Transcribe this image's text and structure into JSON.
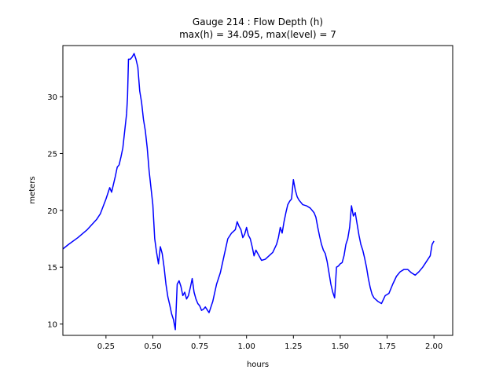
{
  "chart_data": {
    "type": "line",
    "title": [
      "Gauge 214 : Flow Depth (h)",
      "max(h) =  34.095,    max(level) = 7"
    ],
    "xlabel": "hours",
    "ylabel": "meters",
    "xlim": [
      0.02,
      2.1
    ],
    "ylim": [
      9.0,
      34.5
    ],
    "xticks": [
      0.25,
      0.5,
      0.75,
      1.0,
      1.25,
      1.5,
      1.75,
      2.0
    ],
    "xtick_labels": [
      "0.25",
      "0.50",
      "0.75",
      "1.00",
      "1.25",
      "1.50",
      "1.75",
      "2.00"
    ],
    "yticks": [
      10,
      15,
      20,
      25,
      30
    ],
    "ytick_labels": [
      "10",
      "15",
      "20",
      "25",
      "30"
    ],
    "grid": false,
    "line_color": "#0000ff",
    "series": [
      {
        "name": "",
        "x": [
          0.02,
          0.05,
          0.1,
          0.15,
          0.2,
          0.22,
          0.25,
          0.27,
          0.28,
          0.29,
          0.3,
          0.31,
          0.32,
          0.33,
          0.34,
          0.35,
          0.36,
          0.365,
          0.37,
          0.38,
          0.39,
          0.4,
          0.41,
          0.42,
          0.43,
          0.44,
          0.45,
          0.46,
          0.47,
          0.48,
          0.49,
          0.5,
          0.51,
          0.52,
          0.53,
          0.54,
          0.55,
          0.56,
          0.57,
          0.58,
          0.59,
          0.6,
          0.61,
          0.62,
          0.63,
          0.64,
          0.65,
          0.66,
          0.67,
          0.68,
          0.69,
          0.7,
          0.71,
          0.72,
          0.73,
          0.74,
          0.75,
          0.76,
          0.77,
          0.78,
          0.8,
          0.82,
          0.84,
          0.86,
          0.88,
          0.9,
          0.92,
          0.94,
          0.95,
          0.96,
          0.97,
          0.98,
          0.99,
          1.0,
          1.01,
          1.02,
          1.03,
          1.04,
          1.05,
          1.06,
          1.08,
          1.1,
          1.12,
          1.14,
          1.16,
          1.17,
          1.18,
          1.19,
          1.2,
          1.21,
          1.22,
          1.23,
          1.24,
          1.25,
          1.26,
          1.27,
          1.28,
          1.3,
          1.32,
          1.34,
          1.36,
          1.37,
          1.38,
          1.39,
          1.4,
          1.41,
          1.42,
          1.43,
          1.44,
          1.45,
          1.46,
          1.47,
          1.48,
          1.49,
          1.5,
          1.51,
          1.52,
          1.53,
          1.54,
          1.55,
          1.56,
          1.57,
          1.58,
          1.59,
          1.6,
          1.61,
          1.62,
          1.63,
          1.64,
          1.65,
          1.66,
          1.67,
          1.68,
          1.7,
          1.72,
          1.74,
          1.76,
          1.78,
          1.8,
          1.82,
          1.84,
          1.86,
          1.88,
          1.9,
          1.92,
          1.94,
          1.96,
          1.98,
          1.99,
          2.0
        ],
        "y": [
          16.6,
          17.0,
          17.6,
          18.3,
          19.2,
          19.7,
          21.0,
          22.0,
          21.6,
          22.3,
          23.0,
          23.8,
          24.0,
          24.7,
          25.5,
          27.0,
          28.5,
          30.0,
          33.3,
          33.3,
          33.5,
          33.8,
          33.3,
          32.6,
          30.5,
          29.5,
          28.0,
          27.0,
          25.5,
          23.5,
          22.0,
          20.5,
          17.5,
          16.3,
          15.3,
          16.8,
          16.2,
          15.0,
          13.5,
          12.4,
          11.7,
          10.9,
          10.4,
          9.5,
          13.5,
          13.8,
          13.3,
          12.5,
          12.8,
          12.2,
          12.5,
          13.2,
          14.0,
          12.8,
          12.2,
          11.8,
          11.6,
          11.2,
          11.3,
          11.5,
          11.0,
          12.0,
          13.5,
          14.5,
          16.0,
          17.5,
          18.0,
          18.3,
          19.0,
          18.6,
          18.3,
          17.6,
          17.9,
          18.5,
          17.8,
          17.5,
          16.8,
          16.0,
          16.5,
          16.2,
          15.6,
          15.7,
          16.0,
          16.3,
          17.0,
          17.6,
          18.5,
          18.0,
          19.0,
          19.8,
          20.5,
          20.8,
          21.0,
          22.7,
          21.8,
          21.2,
          20.9,
          20.5,
          20.4,
          20.2,
          19.8,
          19.4,
          18.5,
          17.7,
          17.0,
          16.5,
          16.2,
          15.5,
          14.5,
          13.5,
          12.8,
          12.3,
          15.0,
          15.1,
          15.3,
          15.4,
          16.0,
          17.0,
          17.5,
          18.5,
          20.4,
          19.5,
          19.8,
          18.8,
          17.8,
          17.0,
          16.5,
          15.8,
          15.0,
          14.0,
          13.2,
          12.6,
          12.3,
          12.0,
          11.8,
          12.5,
          12.7,
          13.5,
          14.2,
          14.6,
          14.8,
          14.8,
          14.5,
          14.3,
          14.6,
          15.0,
          15.5,
          16.0,
          17.0,
          17.3
        ]
      }
    ]
  }
}
